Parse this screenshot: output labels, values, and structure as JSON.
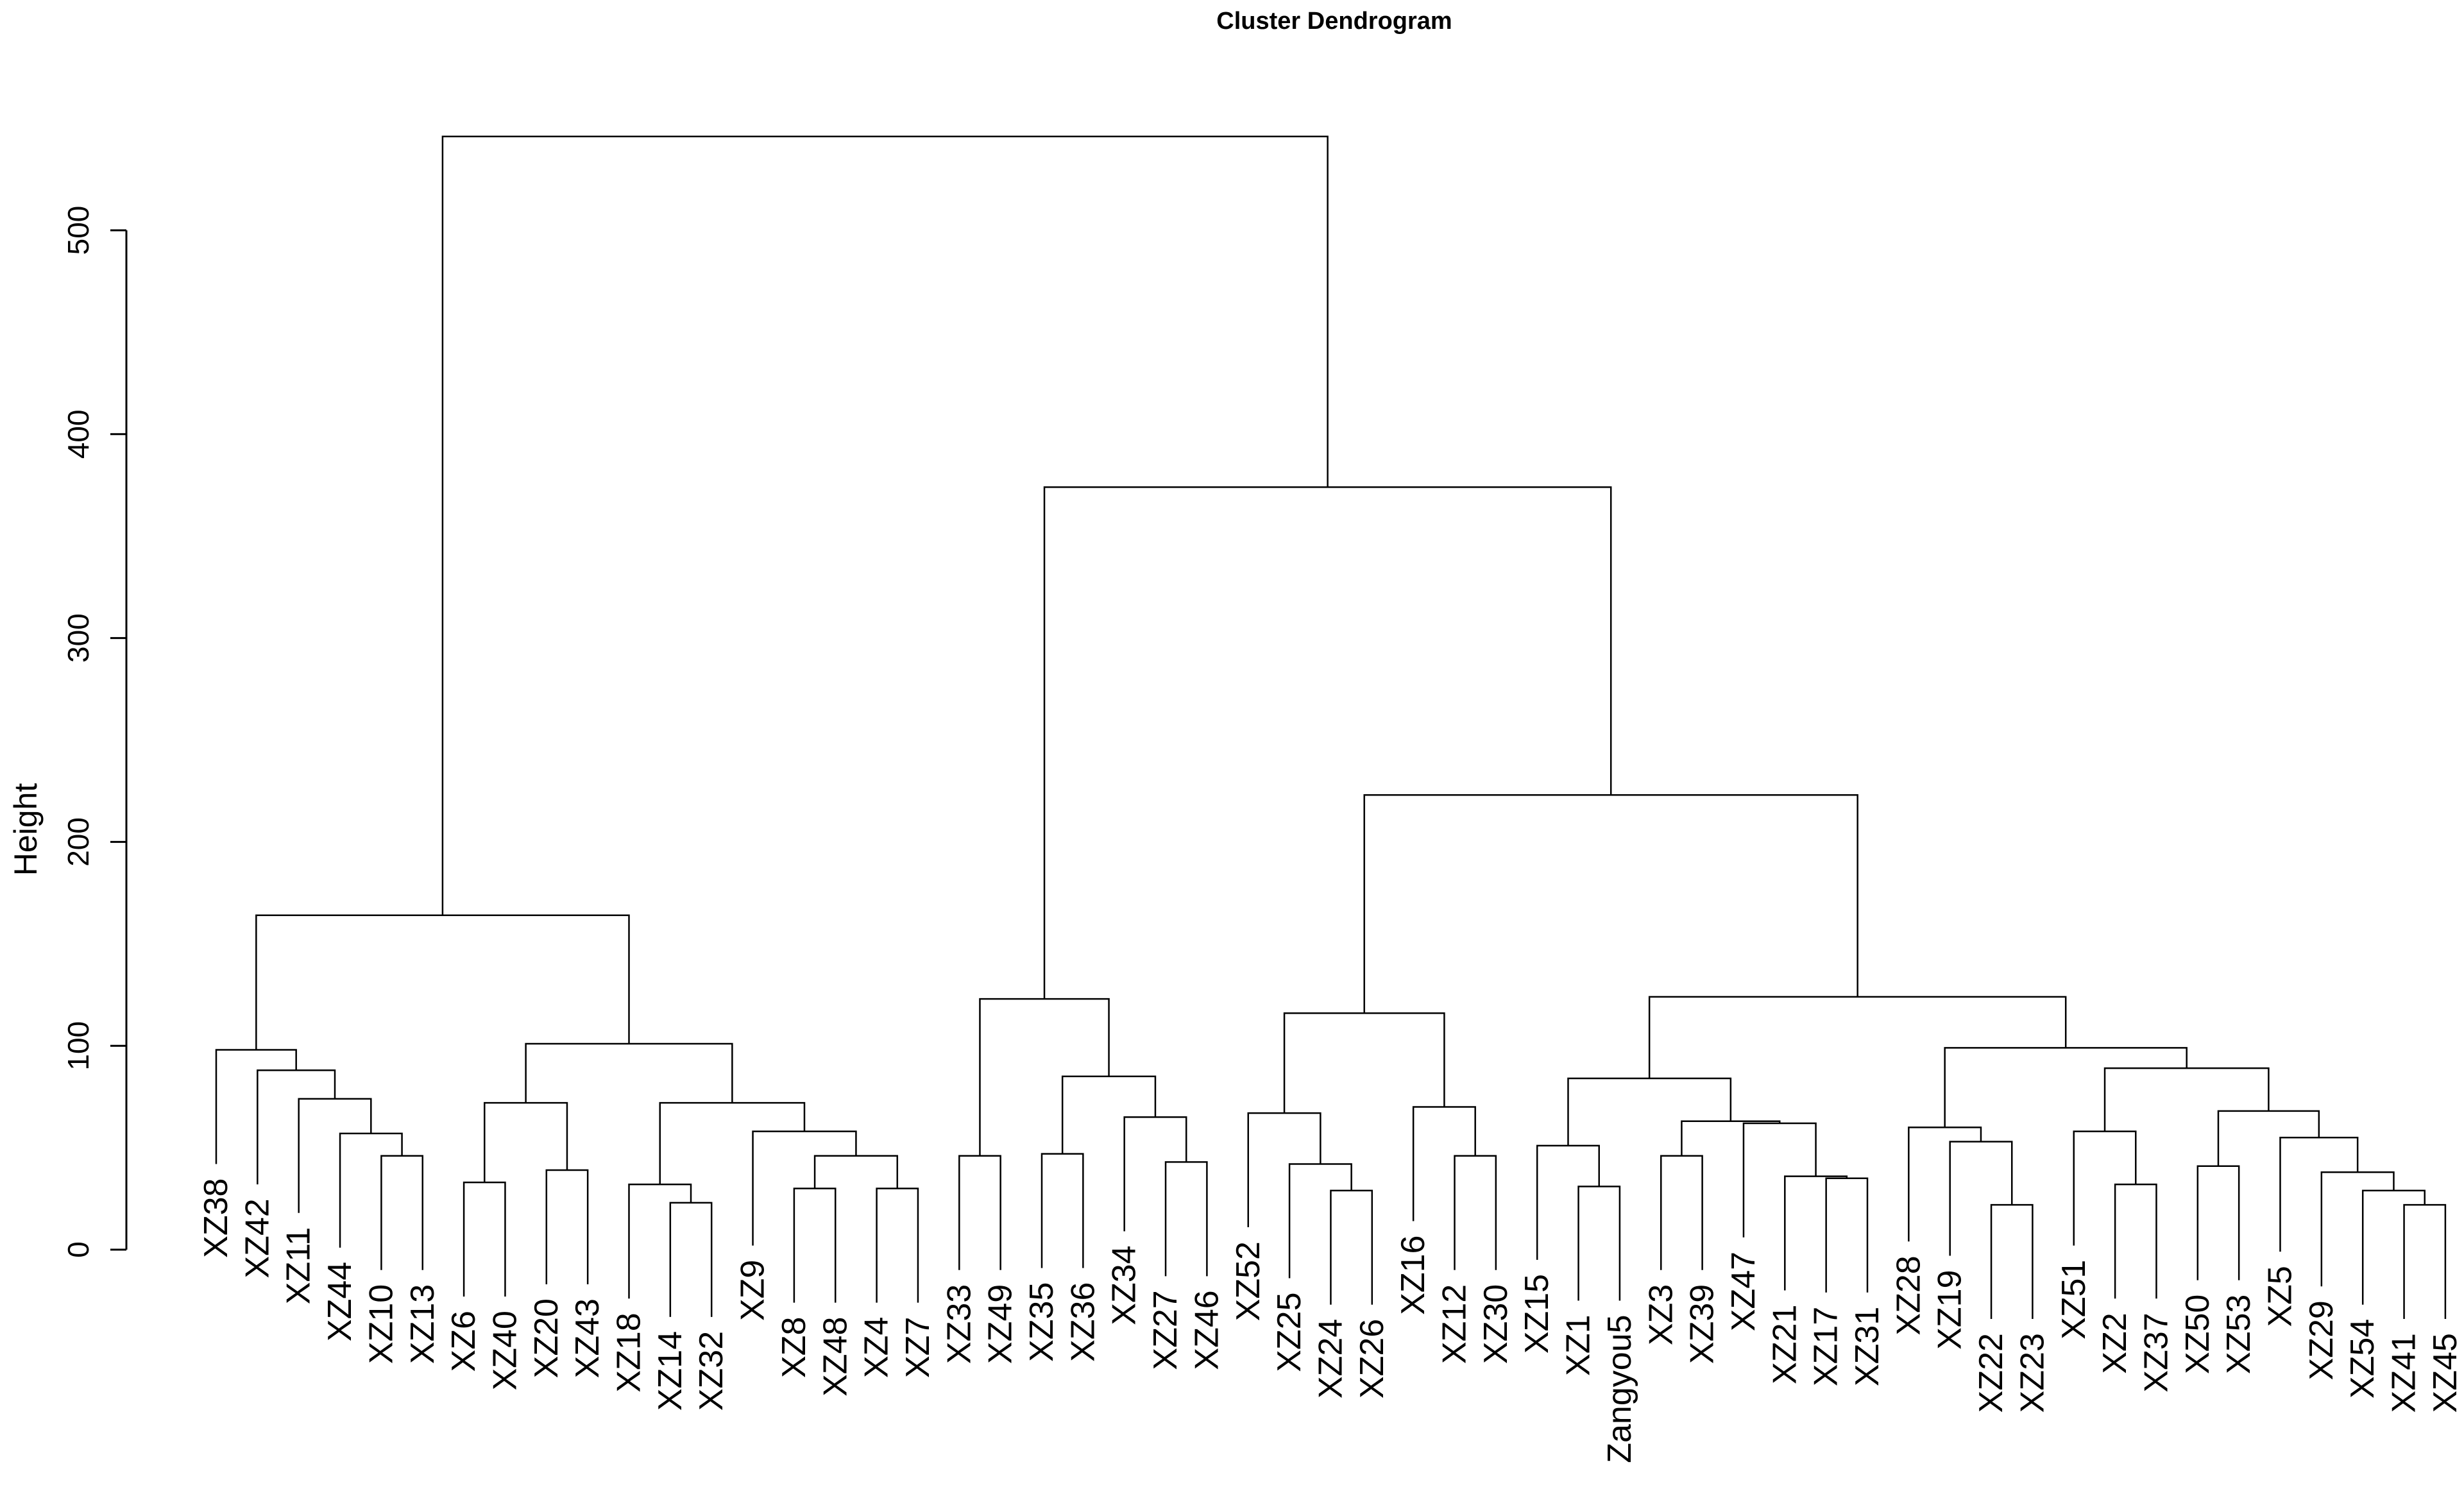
{
  "chart_data": {
    "type": "dendrogram",
    "title": "Cluster Dendrogram",
    "ylabel": "Height",
    "xlabel": "",
    "ylim": [
      0,
      560
    ],
    "yticks": [
      0,
      100,
      200,
      300,
      400,
      500
    ],
    "leaves": [
      "XZ38",
      "XZ42",
      "XZ11",
      "XZ44",
      "XZ10",
      "XZ13",
      "XZ6",
      "XZ40",
      "XZ20",
      "XZ43",
      "XZ18",
      "XZ14",
      "XZ32",
      "XZ9",
      "XZ8",
      "XZ48",
      "XZ4",
      "XZ7",
      "XZ33",
      "XZ49",
      "XZ35",
      "XZ36",
      "XZ34",
      "XZ27",
      "XZ46",
      "XZ52",
      "XZ25",
      "XZ24",
      "XZ26",
      "XZ16",
      "XZ12",
      "XZ30",
      "XZ15",
      "XZ1",
      "Zangyou5",
      "XZ3",
      "XZ39",
      "XZ47",
      "XZ21",
      "XZ17",
      "XZ31",
      "XZ28",
      "XZ19",
      "XZ22",
      "XZ23",
      "XZ51",
      "XZ2",
      "XZ37",
      "XZ50",
      "XZ53",
      "XZ5",
      "XZ29",
      "XZ54",
      "XZ41",
      "XZ45"
    ],
    "merges": [
      [
        -5,
        -6,
        46
      ],
      [
        -4,
        1,
        57
      ],
      [
        -3,
        2,
        74
      ],
      [
        -2,
        3,
        88
      ],
      [
        -1,
        4,
        98
      ],
      [
        -7,
        -8,
        33
      ],
      [
        -9,
        -10,
        39
      ],
      [
        6,
        7,
        72
      ],
      [
        -12,
        -13,
        23
      ],
      [
        -11,
        9,
        32
      ],
      [
        -17,
        -18,
        30
      ],
      [
        -15,
        -16,
        30
      ],
      [
        11,
        12,
        46
      ],
      [
        -14,
        13,
        58
      ],
      [
        10,
        14,
        72
      ],
      [
        8,
        15,
        101
      ],
      [
        5,
        16,
        164
      ],
      [
        -19,
        -20,
        46
      ],
      [
        -21,
        -22,
        47
      ],
      [
        -24,
        -25,
        43
      ],
      [
        -23,
        20,
        65
      ],
      [
        19,
        21,
        85
      ],
      [
        18,
        22,
        123
      ],
      [
        -28,
        -29,
        29
      ],
      [
        -27,
        24,
        42
      ],
      [
        -26,
        25,
        67
      ],
      [
        -31,
        -32,
        46
      ],
      [
        -30,
        27,
        70
      ],
      [
        26,
        28,
        116
      ],
      [
        -34,
        -35,
        31
      ],
      [
        -33,
        30,
        51
      ],
      [
        -36,
        -37,
        46
      ],
      [
        -40,
        -41,
        35
      ],
      [
        -39,
        33,
        36
      ],
      [
        -38,
        34,
        62
      ],
      [
        32,
        35,
        63
      ],
      [
        31,
        36,
        84
      ],
      [
        -44,
        -45,
        22
      ],
      [
        -43,
        38,
        53
      ],
      [
        -42,
        39,
        60
      ],
      [
        -47,
        -48,
        32
      ],
      [
        -46,
        41,
        58
      ],
      [
        -49,
        -50,
        41
      ],
      [
        -54,
        -55,
        22
      ],
      [
        -53,
        44,
        29
      ],
      [
        -52,
        45,
        38
      ],
      [
        -51,
        46,
        55
      ],
      [
        43,
        47,
        68
      ],
      [
        42,
        48,
        89
      ],
      [
        40,
        49,
        99
      ],
      [
        37,
        50,
        124
      ],
      [
        29,
        51,
        223
      ],
      [
        23,
        52,
        374
      ],
      [
        17,
        53,
        546
      ]
    ]
  }
}
